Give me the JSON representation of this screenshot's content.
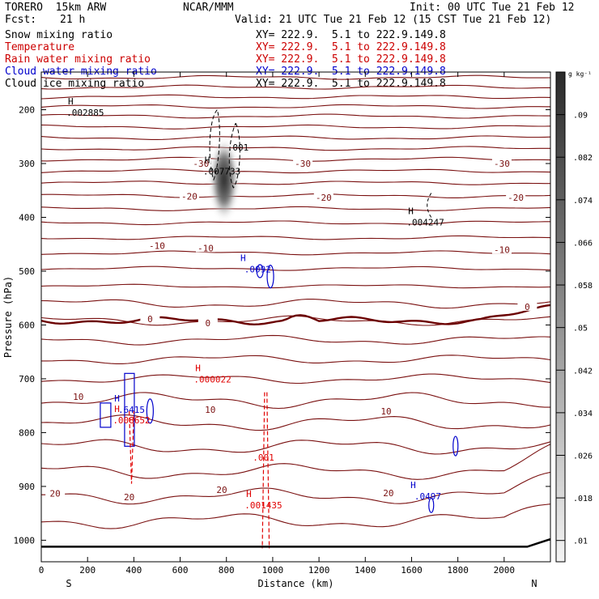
{
  "header": {
    "model": "TORERO  15km ARW",
    "org": "NCAR/MMM",
    "init": "Init: 00 UTC Tue 21 Feb 12",
    "fcst_label": "Fcst:",
    "fcst_value": "21 h",
    "valid": "Valid: 21 UTC Tue 21 Feb 12 (15 CST Tue 21 Feb 12)"
  },
  "fields": [
    {
      "label": "Snow mixing ratio",
      "xy": "XY= 222.9.  5.1 to 222.9.149.8",
      "color": "#000000"
    },
    {
      "label": "Temperature",
      "xy": "XY= 222.9.  5.1 to 222.9.149.8",
      "color": "#cc0000"
    },
    {
      "label": "Rain water mixing ratio",
      "xy": "XY= 222.9.  5.1 to 222.9.149.8",
      "color": "#cc0000"
    },
    {
      "label": "Cloud water mixing ratio",
      "xy": "XY= 222.9.  5.1 to 222.9.149.8",
      "color": "#0000cc"
    },
    {
      "label": "Cloud ice mixing ratio",
      "xy": "XY= 222.9.  5.1 to 222.9.149.8",
      "color": "#000000"
    }
  ],
  "colors": {
    "temperature_lines": "#7a1010",
    "zero_isotherm": "#6b0000",
    "rain": "#e00000",
    "cloud_water": "#0000cc",
    "snow_shading": "#2a2a2a",
    "terrain": "#000000"
  },
  "chart_data": {
    "type": "cross-section",
    "xlabel": "Distance (km)",
    "ylabel": "Pressure (hPa)",
    "xlim": [
      0,
      2200
    ],
    "ylim": [
      1040,
      130
    ],
    "x_ticks": [
      0,
      200,
      400,
      600,
      800,
      1000,
      1200,
      1400,
      1600,
      1800,
      2000
    ],
    "y_ticks": [
      200,
      300,
      400,
      500,
      600,
      700,
      800,
      900,
      1000
    ],
    "x_tick_labels": [
      "0",
      "200",
      "400",
      "600",
      "800",
      "1000",
      "1200",
      "1400",
      "1600",
      "1800",
      "2000"
    ],
    "y_tick_labels": [
      "200",
      "300",
      "400",
      "500",
      "600",
      "700",
      "800",
      "900",
      "1000"
    ],
    "left_end_label": "S",
    "right_end_label": "N",
    "colorbar": {
      "unit": "g kg⁻¹",
      "ticks": [
        ".01",
        ".018",
        ".026",
        ".034",
        ".042",
        ".05",
        ".058",
        ".066",
        ".074",
        ".082",
        ".09"
      ],
      "values": [
        0.01,
        0.018,
        0.026,
        0.034,
        0.042,
        0.05,
        0.058,
        0.066,
        0.074,
        0.082,
        0.09
      ]
    },
    "temperature_labels": [
      {
        "text": "-30",
        "x": 690,
        "p": 300
      },
      {
        "text": "-30",
        "x": 1130,
        "p": 300
      },
      {
        "text": "-30",
        "x": 1990,
        "p": 300
      },
      {
        "text": "-20",
        "x": 640,
        "p": 361
      },
      {
        "text": "-20",
        "x": 1220,
        "p": 363
      },
      {
        "text": "-20",
        "x": 2050,
        "p": 363
      },
      {
        "text": "-10",
        "x": 500,
        "p": 453
      },
      {
        "text": "-10",
        "x": 710,
        "p": 457
      },
      {
        "text": "-10",
        "x": 1990,
        "p": 460
      },
      {
        "text": "0",
        "x": 470,
        "p": 589
      },
      {
        "text": "0",
        "x": 720,
        "p": 596
      },
      {
        "text": "0",
        "x": 2100,
        "p": 566
      },
      {
        "text": "10",
        "x": 160,
        "p": 733
      },
      {
        "text": "10",
        "x": 730,
        "p": 757
      },
      {
        "text": "10",
        "x": 1490,
        "p": 760
      },
      {
        "text": "20",
        "x": 60,
        "p": 913
      },
      {
        "text": "20",
        "x": 380,
        "p": 920
      },
      {
        "text": "20",
        "x": 780,
        "p": 906
      },
      {
        "text": "20",
        "x": 1500,
        "p": 912
      }
    ],
    "maxima": [
      {
        "field": "snow",
        "label": "H",
        "value": ".002885",
        "x": 190,
        "p": 205
      },
      {
        "field": "snow",
        "label": "H",
        "value": ".007733",
        "x": 780,
        "p": 314
      },
      {
        "field": "snow",
        "label": "",
        "value": ".001",
        "x": 850,
        "p": 270
      },
      {
        "field": "snow",
        "label": "H",
        "value": ".004247",
        "x": 1660,
        "p": 409
      },
      {
        "field": "cloud_water",
        "label": "H",
        "value": ".0092",
        "x": 935,
        "p": 496
      },
      {
        "field": "cloud_water",
        "label": "H",
        "value": ".6415",
        "x": 390,
        "p": 757
      },
      {
        "field": "cloud_water",
        "label": "H",
        "value": ".0497",
        "x": 1670,
        "p": 918
      },
      {
        "field": "rain",
        "label": "H",
        "value": ".000022",
        "x": 740,
        "p": 701
      },
      {
        "field": "rain",
        "label": "H",
        "value": ".008652",
        "x": 390,
        "p": 777
      },
      {
        "field": "rain",
        "label": "",
        "value": ".001",
        "x": 960,
        "p": 846
      },
      {
        "field": "rain",
        "label": "H",
        "value": ".001435",
        "x": 960,
        "p": 935
      }
    ]
  }
}
